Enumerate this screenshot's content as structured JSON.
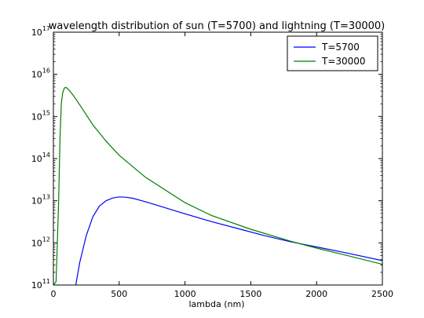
{
  "chart_data": {
    "type": "line",
    "title": "wavelength distribution of sun (T=5700) and lightning (T=30000)",
    "xlabel": "lambda (nm)",
    "ylabel": "",
    "xlim": [
      0,
      2500
    ],
    "ylim": [
      100000000000,
      100000000000000000
    ],
    "yscale": "log",
    "grid": false,
    "legend": "top-right",
    "x_ticks": [
      0,
      500,
      1000,
      1500,
      2000,
      2500
    ],
    "x_tick_labels": [
      "0",
      "500",
      "1000",
      "1500",
      "2000",
      "2500"
    ],
    "y_ticks": [
      {
        "base": "10",
        "exp": "11"
      },
      {
        "base": "10",
        "exp": "12"
      },
      {
        "base": "10",
        "exp": "13"
      },
      {
        "base": "10",
        "exp": "14"
      },
      {
        "base": "10",
        "exp": "15"
      },
      {
        "base": "10",
        "exp": "16"
      },
      {
        "base": "10",
        "exp": "17"
      }
    ],
    "series": [
      {
        "name": "T=5700",
        "color": "#0000ff",
        "x": [
          170,
          200,
          250,
          300,
          350,
          400,
          450,
          500,
          550,
          600,
          700,
          800,
          900,
          1000,
          1200,
          1400,
          1600,
          1800,
          2000,
          2200,
          2500
        ],
        "y": [
          100000000000,
          340000000000,
          1500000000000,
          4200000000000,
          7500000000000,
          10000000000000,
          11600000000000,
          12300000000000,
          12100000000000,
          11500000000000,
          9500000000000,
          7600000000000,
          6100000000000,
          4900000000000,
          3200000000000,
          2200000000000,
          1500000000000,
          1070000000000,
          800000000000,
          600000000000,
          380000000000
        ]
      },
      {
        "name": "T=30000",
        "color": "#007f00",
        "x": [
          0,
          20,
          30,
          40,
          50,
          60,
          70,
          80,
          90,
          100,
          120,
          150,
          200,
          300,
          400,
          500,
          700,
          1000,
          1200,
          1500,
          1800,
          2000,
          2200,
          2500
        ],
        "y": [
          100000000000,
          120000000000,
          1000000000000,
          10000000000000,
          300000000000000,
          2000000000000000,
          3500000000000000,
          4500000000000000,
          4900000000000000,
          4800000000000000,
          4200000000000000,
          3200000000000000,
          1900000000000000,
          630000000000000,
          260000000000000,
          120000000000000,
          36000000000000,
          9000000000000,
          4500000000000,
          2100000000000,
          1100000000000,
          750000000000,
          530000000000,
          310000000000
        ]
      }
    ]
  }
}
